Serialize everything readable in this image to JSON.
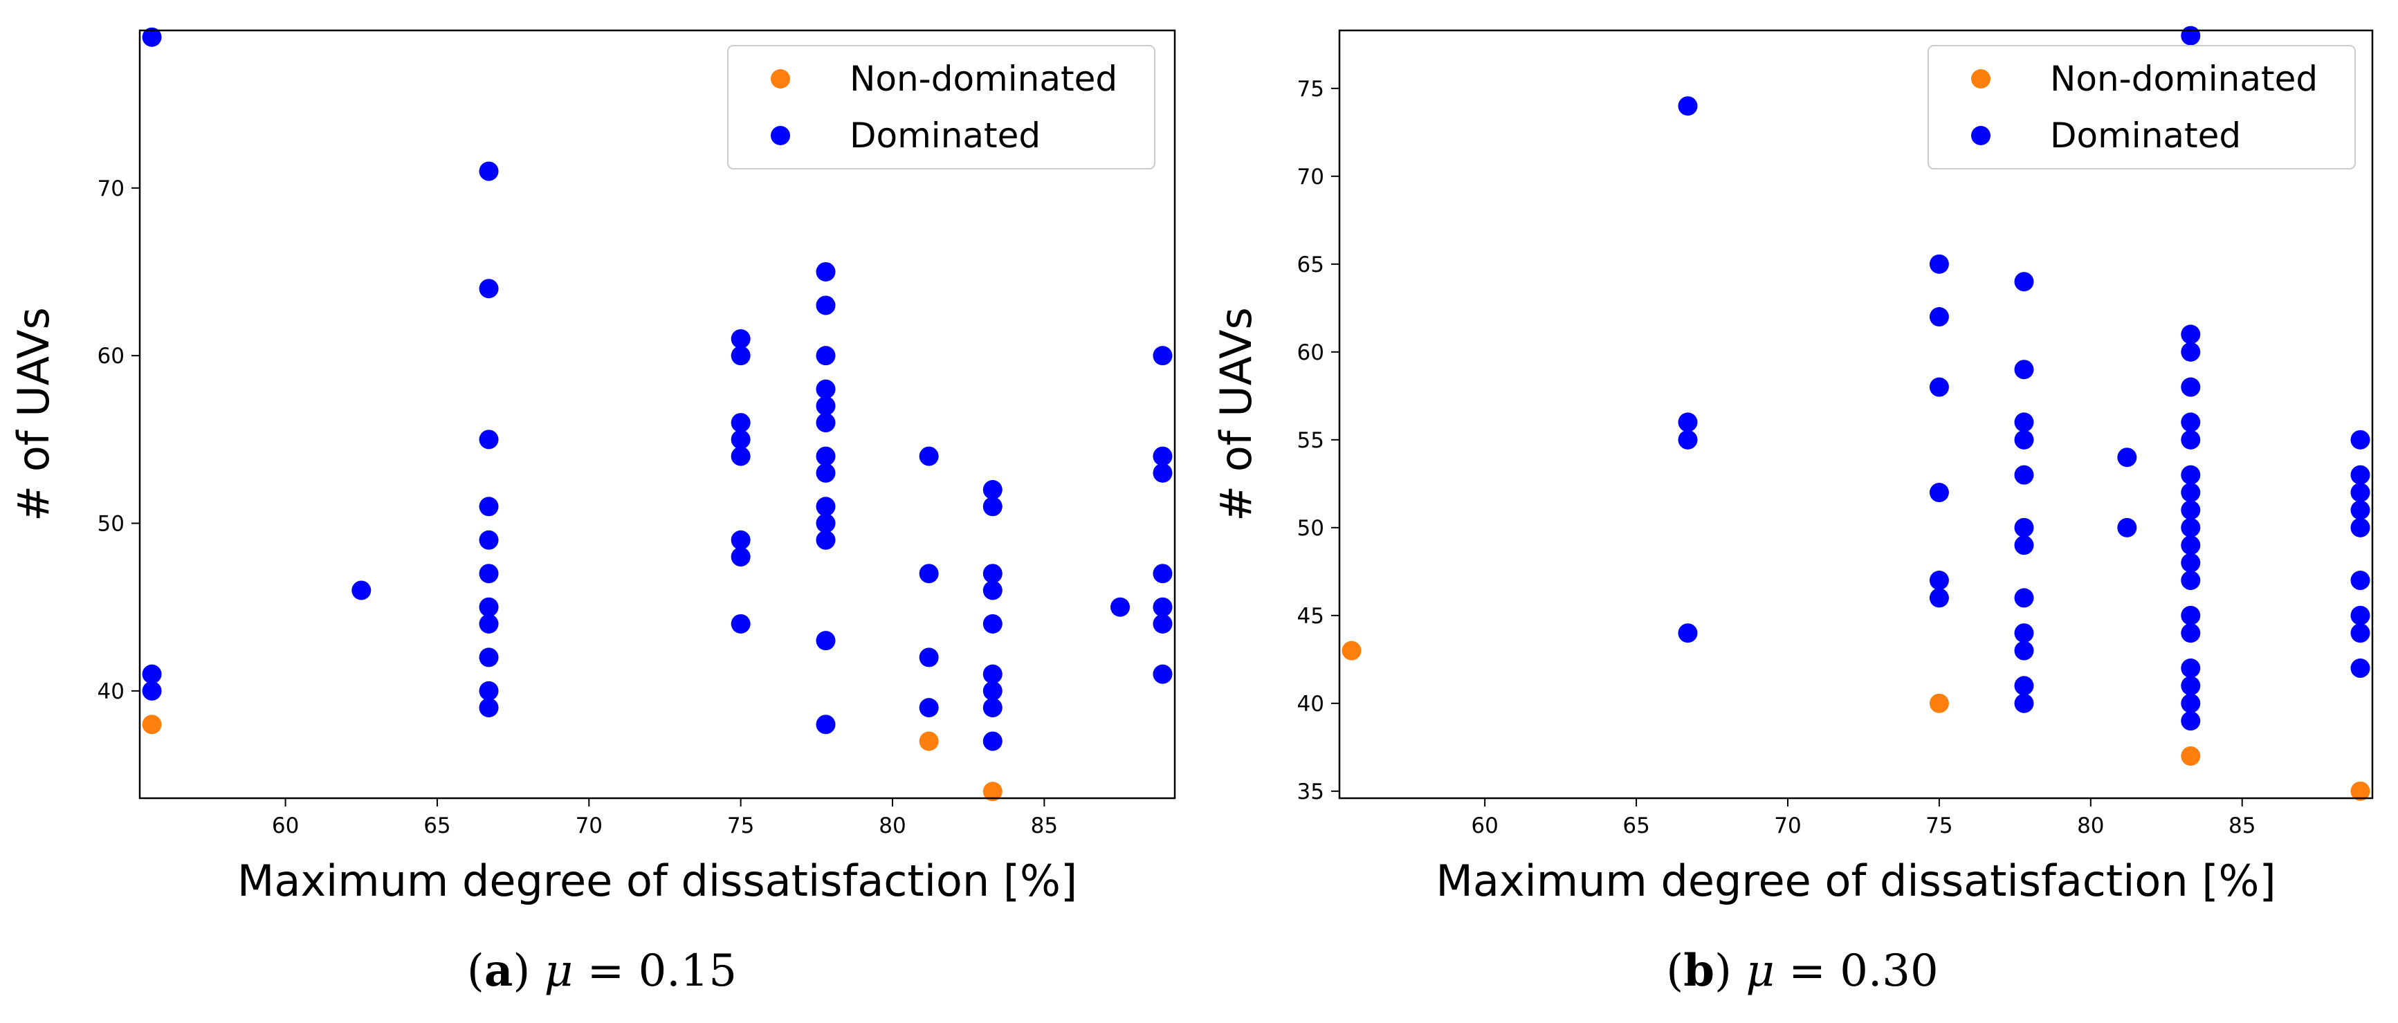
{
  "figure": {
    "panels": [
      {
        "caption_letter": "a",
        "caption_symbol": "μ",
        "caption_value": "= 0.15"
      },
      {
        "caption_letter": "b",
        "caption_symbol": "μ",
        "caption_value": "= 0.30"
      }
    ]
  },
  "colors": {
    "non_dominated": "#ff7f0e",
    "dominated": "#0000ff",
    "axes": "#000000"
  },
  "chart_data": [
    {
      "type": "scatter",
      "title": "",
      "xlabel": "Maximum degree of dissatisfaction [%]",
      "ylabel": "# of UAVs",
      "xlim": [
        55.2,
        89.3
      ],
      "ylim": [
        33.6,
        79.4
      ],
      "xticks": [
        60,
        65,
        70,
        75,
        80,
        85
      ],
      "yticks": [
        40,
        50,
        60,
        70
      ],
      "legend": {
        "location": "upper-right",
        "entries": [
          "Non-dominated",
          "Dominated"
        ]
      },
      "series": [
        {
          "name": "Non-dominated",
          "color": "#ff7f0e",
          "points": [
            [
              55.6,
              38
            ],
            [
              81.2,
              37
            ],
            [
              83.3,
              34
            ]
          ]
        },
        {
          "name": "Dominated",
          "color": "#0000ff",
          "points": [
            [
              55.6,
              79
            ],
            [
              55.6,
              41
            ],
            [
              55.6,
              40
            ],
            [
              62.5,
              46
            ],
            [
              66.7,
              71
            ],
            [
              66.7,
              64
            ],
            [
              66.7,
              55
            ],
            [
              66.7,
              51
            ],
            [
              66.7,
              49
            ],
            [
              66.7,
              47
            ],
            [
              66.7,
              45
            ],
            [
              66.7,
              44
            ],
            [
              66.7,
              42
            ],
            [
              66.7,
              40
            ],
            [
              66.7,
              39
            ],
            [
              75.0,
              61
            ],
            [
              75.0,
              60
            ],
            [
              75.0,
              56
            ],
            [
              75.0,
              55
            ],
            [
              75.0,
              54
            ],
            [
              75.0,
              49
            ],
            [
              75.0,
              48
            ],
            [
              75.0,
              44
            ],
            [
              77.8,
              65
            ],
            [
              77.8,
              63
            ],
            [
              77.8,
              60
            ],
            [
              77.8,
              58
            ],
            [
              77.8,
              57
            ],
            [
              77.8,
              56
            ],
            [
              77.8,
              54
            ],
            [
              77.8,
              53
            ],
            [
              77.8,
              51
            ],
            [
              77.8,
              50
            ],
            [
              77.8,
              49
            ],
            [
              77.8,
              43
            ],
            [
              77.8,
              38
            ],
            [
              81.2,
              54
            ],
            [
              81.2,
              47
            ],
            [
              81.2,
              42
            ],
            [
              81.2,
              39
            ],
            [
              83.3,
              52
            ],
            [
              83.3,
              51
            ],
            [
              83.3,
              47
            ],
            [
              83.3,
              46
            ],
            [
              83.3,
              44
            ],
            [
              83.3,
              41
            ],
            [
              83.3,
              40
            ],
            [
              83.3,
              39
            ],
            [
              83.3,
              37
            ],
            [
              87.5,
              45
            ],
            [
              88.9,
              60
            ],
            [
              88.9,
              54
            ],
            [
              88.9,
              53
            ],
            [
              88.9,
              47
            ],
            [
              88.9,
              45
            ],
            [
              88.9,
              44
            ],
            [
              88.9,
              41
            ]
          ]
        }
      ]
    },
    {
      "type": "scatter",
      "title": "",
      "xlabel": "Maximum degree of dissatisfaction [%]",
      "ylabel": "# of UAVs",
      "xlim": [
        55.2,
        89.3
      ],
      "ylim": [
        34.6,
        78.3
      ],
      "xticks": [
        60,
        65,
        70,
        75,
        80,
        85
      ],
      "yticks": [
        35,
        40,
        45,
        50,
        55,
        60,
        65,
        70,
        75
      ],
      "legend": {
        "location": "upper-right",
        "entries": [
          "Non-dominated",
          "Dominated"
        ]
      },
      "series": [
        {
          "name": "Non-dominated",
          "color": "#ff7f0e",
          "points": [
            [
              55.6,
              43
            ],
            [
              75.0,
              40
            ],
            [
              83.3,
              37
            ],
            [
              88.9,
              35
            ]
          ]
        },
        {
          "name": "Dominated",
          "color": "#0000ff",
          "points": [
            [
              66.7,
              74
            ],
            [
              66.7,
              56
            ],
            [
              66.7,
              55
            ],
            [
              66.7,
              44
            ],
            [
              75.0,
              65
            ],
            [
              75.0,
              62
            ],
            [
              75.0,
              58
            ],
            [
              75.0,
              52
            ],
            [
              75.0,
              47
            ],
            [
              75.0,
              46
            ],
            [
              77.8,
              64
            ],
            [
              77.8,
              59
            ],
            [
              77.8,
              56
            ],
            [
              77.8,
              55
            ],
            [
              77.8,
              53
            ],
            [
              77.8,
              50
            ],
            [
              77.8,
              49
            ],
            [
              77.8,
              46
            ],
            [
              77.8,
              44
            ],
            [
              77.8,
              43
            ],
            [
              77.8,
              41
            ],
            [
              77.8,
              40
            ],
            [
              81.2,
              54
            ],
            [
              81.2,
              50
            ],
            [
              83.3,
              78
            ],
            [
              83.3,
              61
            ],
            [
              83.3,
              60
            ],
            [
              83.3,
              58
            ],
            [
              83.3,
              56
            ],
            [
              83.3,
              55
            ],
            [
              83.3,
              53
            ],
            [
              83.3,
              52
            ],
            [
              83.3,
              51
            ],
            [
              83.3,
              50
            ],
            [
              83.3,
              49
            ],
            [
              83.3,
              48
            ],
            [
              83.3,
              47
            ],
            [
              83.3,
              45
            ],
            [
              83.3,
              44
            ],
            [
              83.3,
              42
            ],
            [
              83.3,
              41
            ],
            [
              83.3,
              40
            ],
            [
              83.3,
              39
            ],
            [
              88.9,
              55
            ],
            [
              88.9,
              53
            ],
            [
              88.9,
              52
            ],
            [
              88.9,
              51
            ],
            [
              88.9,
              50
            ],
            [
              88.9,
              47
            ],
            [
              88.9,
              45
            ],
            [
              88.9,
              44
            ],
            [
              88.9,
              42
            ]
          ]
        }
      ]
    }
  ]
}
